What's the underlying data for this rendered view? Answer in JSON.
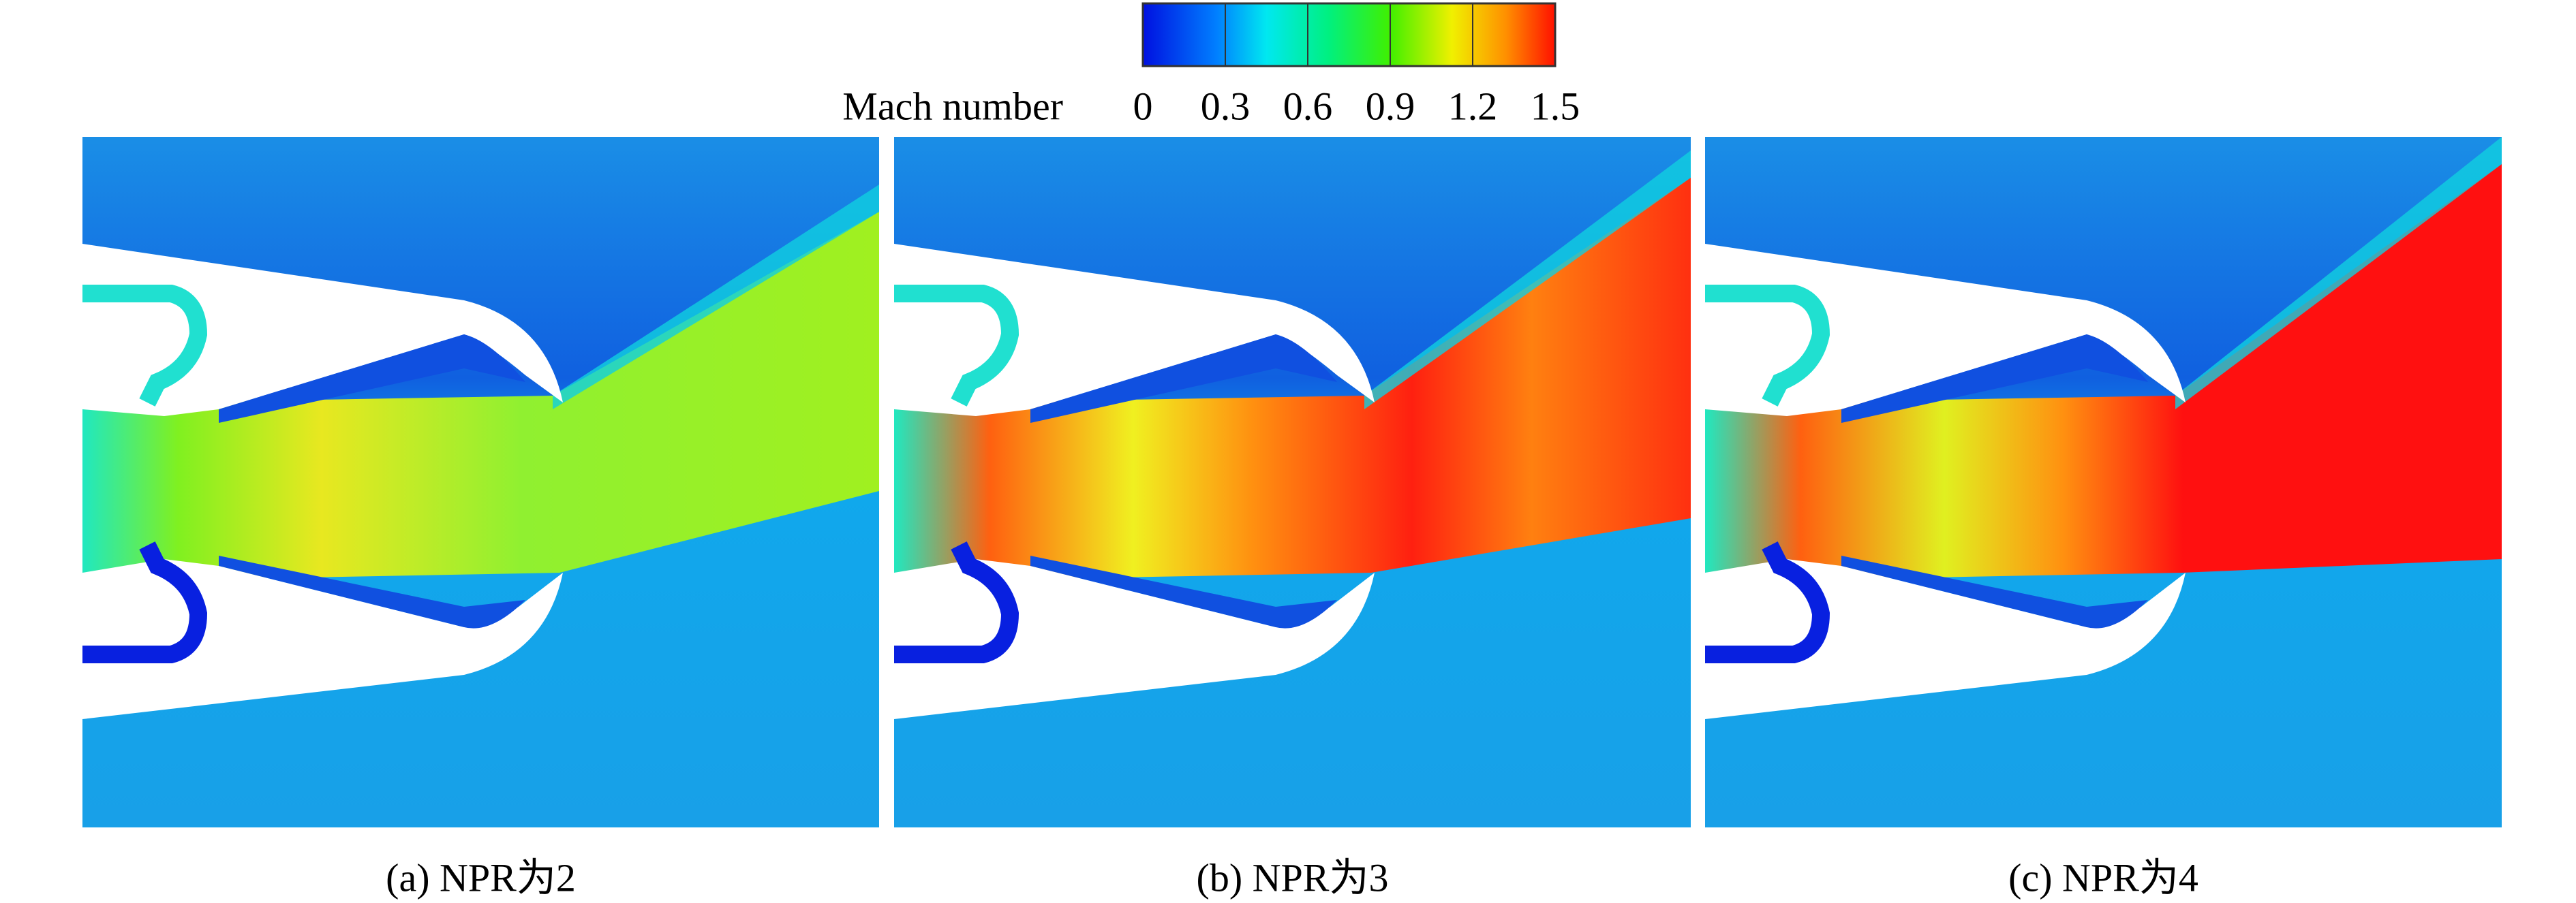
{
  "colorbar": {
    "label": "Mach number",
    "lim": [
      0,
      1.5
    ],
    "ticks": [
      0,
      0.3,
      0.6,
      0.9,
      1.2,
      1.5
    ]
  },
  "panels": [
    {
      "caption": "(a) NPR为2"
    },
    {
      "caption": "(b) NPR为3"
    },
    {
      "caption": "(c) NPR为4"
    }
  ]
}
